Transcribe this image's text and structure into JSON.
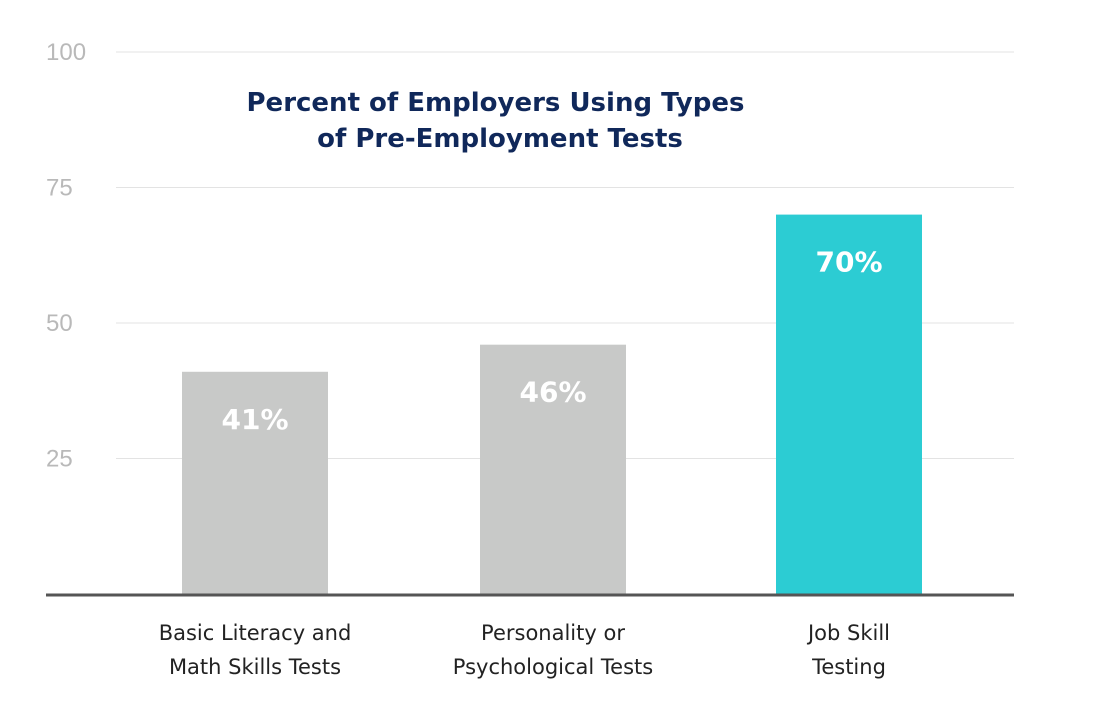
{
  "chart_data": {
    "type": "bar",
    "title": "Percent of Employers Using Types of Pre-Employment Tests",
    "title_lines": [
      "Percent of Employers Using Types",
      "of Pre-Employment Tests"
    ],
    "categories": [
      "Basic Literacy and Math Skills Tests",
      "Personality or Psychological Tests",
      "Job Skill Testing"
    ],
    "category_lines": [
      [
        "Basic Literacy and",
        "Math Skills Tests"
      ],
      [
        "Personality or",
        "Psychological Tests"
      ],
      [
        "Job Skill",
        "Testing"
      ]
    ],
    "values": [
      41,
      46,
      70
    ],
    "data_labels": [
      "41%",
      "46%",
      "70%"
    ],
    "xlabel": "",
    "ylabel": "",
    "ylim": [
      0,
      100
    ],
    "yticks": [
      25,
      50,
      75,
      100
    ],
    "grid": true,
    "legend": "none",
    "colors": {
      "default_bar": "#c8c9c8",
      "highlight_bar": "#2cccd3",
      "highlight_index": 2,
      "gridline": "#e3e3e3",
      "axis": "#555555",
      "title": "#10285a",
      "tick_label": "#b9b9b9",
      "data_label": "#ffffff"
    }
  }
}
